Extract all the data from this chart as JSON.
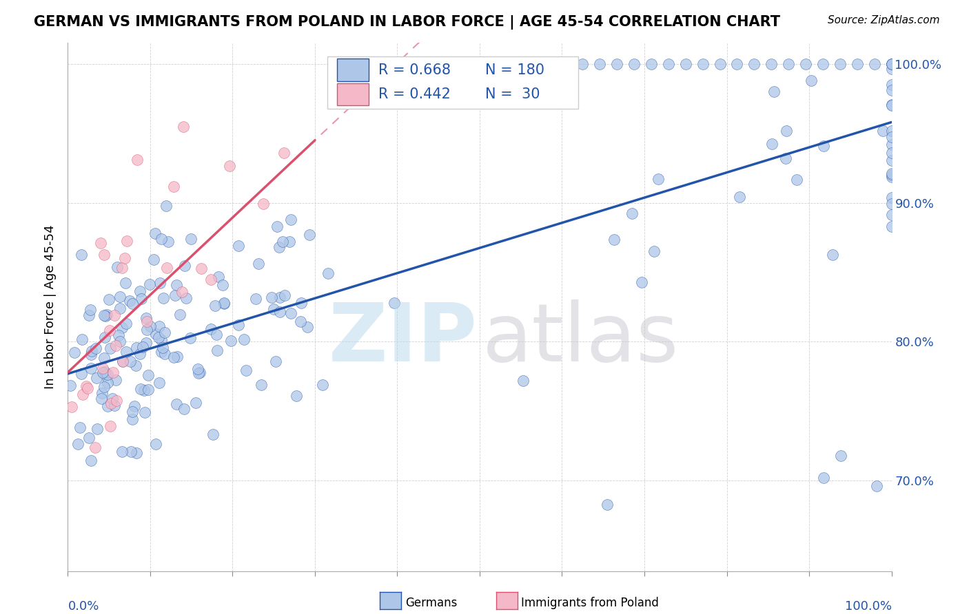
{
  "title": "GERMAN VS IMMIGRANTS FROM POLAND IN LABOR FORCE | AGE 45-54 CORRELATION CHART",
  "source": "Source: ZipAtlas.com",
  "ylabel": "In Labor Force | Age 45-54",
  "legend_german_R": "R = 0.668",
  "legend_german_N": "N = 180",
  "legend_poland_R": "R = 0.442",
  "legend_poland_N": "N =  30",
  "german_color": "#aec6e8",
  "poland_color": "#f5b8c8",
  "german_line_color": "#2255aa",
  "poland_line_color": "#d9516e",
  "legend_text_color": "#2255aa",
  "axis_label_color": "#2255aa",
  "xlim": [
    0.0,
    1.0
  ],
  "ylim": [
    0.635,
    1.015
  ]
}
